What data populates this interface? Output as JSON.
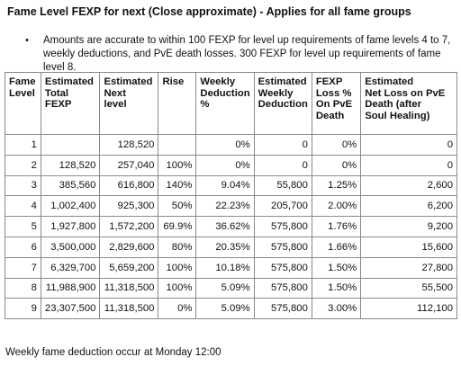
{
  "title": "Fame Level FEXP for next (Close approximate) - Applies for all fame groups",
  "bullet_symbol": "•",
  "note": "Amounts are accurate to within 100 FEXP for level up requirements of fame levels 4 to 7, weekly deductions, and PvE death losses. 300 FEXP for level up requirements of fame level 8.",
  "table": {
    "headers": [
      [
        "Fame",
        "Level"
      ],
      [
        "Estimated",
        "Total",
        "FEXP"
      ],
      [
        "Estimated",
        "Next",
        "level"
      ],
      [
        "Rise"
      ],
      [
        "Weekly",
        "Deduction",
        "%"
      ],
      [
        "Estimated",
        "Weekly",
        "Deduction"
      ],
      [
        "FEXP",
        "Loss %",
        "On PvE",
        "Death"
      ],
      [
        "Estimated",
        "Net Loss on PvE",
        "Death (after",
        "Soul Healing)"
      ]
    ],
    "rows": [
      [
        "1",
        "",
        "128,520",
        "",
        "0%",
        "0",
        "0%",
        "0"
      ],
      [
        "2",
        "128,520",
        "257,040",
        "100%",
        "0%",
        "0",
        "0%",
        "0"
      ],
      [
        "3",
        "385,560",
        "616,800",
        "140%",
        "9.04%",
        "55,800",
        "1.25%",
        "2,600"
      ],
      [
        "4",
        "1,002,400",
        "925,300",
        "50%",
        "22.23%",
        "205,700",
        "2.00%",
        "6,200"
      ],
      [
        "5",
        "1,927,800",
        "1,572,200",
        "69.9%",
        "36.62%",
        "575,800",
        "1.76%",
        "9,200"
      ],
      [
        "6",
        "3,500,000",
        "2,829,600",
        "80%",
        "20.35%",
        "575,800",
        "1.66%",
        "15,600"
      ],
      [
        "7",
        "6,329,700",
        "5,659,200",
        "100%",
        "10.18%",
        "575,800",
        "1.50%",
        "27,800"
      ],
      [
        "8",
        "11,988,900",
        "11,318,500",
        "100%",
        "5.09%",
        "575,800",
        "1.50%",
        "55,500"
      ],
      [
        "9",
        "23,307,500",
        "11,318,500",
        "0%",
        "5.09%",
        "575,800",
        "3.00%",
        "112,100"
      ]
    ]
  },
  "footer": "Weekly fame deduction occur at Monday 12:00"
}
